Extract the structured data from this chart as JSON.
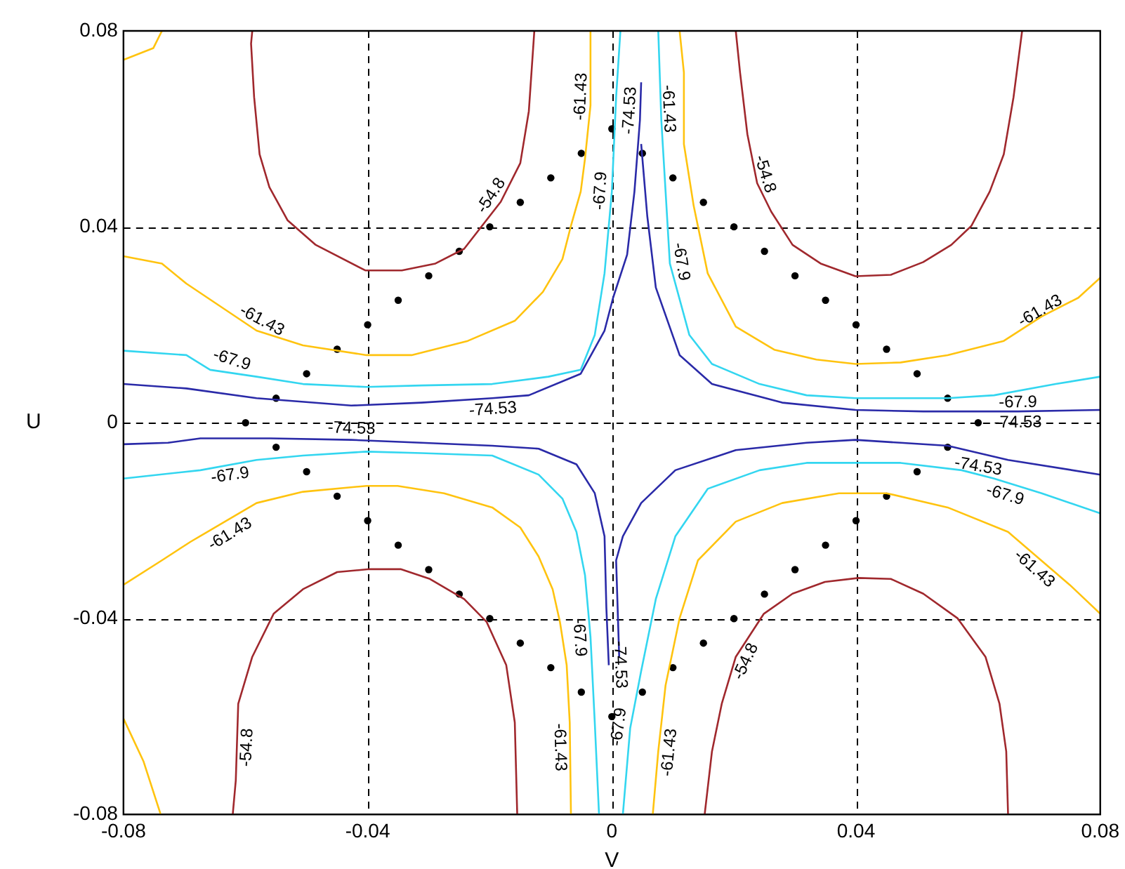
{
  "chart_data": {
    "type": "line",
    "xlabel": "V",
    "ylabel": "U",
    "xlim": [
      -0.08,
      0.08
    ],
    "ylim": [
      -0.08,
      0.08
    ],
    "xticks": [
      -0.08,
      -0.04,
      0,
      0.04,
      0.08
    ],
    "yticks": [
      -0.08,
      -0.04,
      0,
      0.04,
      0.08
    ],
    "grid": true,
    "legend": false,
    "series": [
      {
        "type": "line",
        "color": "#a0282d",
        "x": [
          -0.0589,
          -0.0591,
          -0.0586,
          -0.0577,
          -0.0561,
          -0.0531,
          -0.0485,
          -0.0404,
          -0.0344,
          -0.0289,
          -0.0242,
          -0.0182,
          -0.015,
          -0.0136,
          -0.0127
        ],
        "values": [
          0.08,
          0.0774,
          0.0665,
          0.0548,
          0.0481,
          0.0413,
          0.0363,
          0.0311,
          0.0311,
          0.0325,
          0.0355,
          0.0451,
          0.053,
          0.0636,
          0.08
        ]
      },
      {
        "type": "line",
        "color": "#a0282d",
        "x": [
          0.0203,
          0.021,
          0.0222,
          0.0238,
          0.0261,
          0.0296,
          0.0342,
          0.0399,
          0.0457,
          0.051,
          0.0556,
          0.0589,
          0.0619,
          0.0642,
          0.0658,
          0.0672
        ],
        "values": [
          0.08,
          0.0715,
          0.0589,
          0.0489,
          0.0431,
          0.0363,
          0.0325,
          0.0299,
          0.0302,
          0.0328,
          0.0363,
          0.0402,
          0.0472,
          0.0548,
          0.0665,
          0.08
        ]
      },
      {
        "type": "line",
        "color": "#a0282d",
        "x": [
          -0.0621,
          -0.0616,
          -0.0612,
          -0.0589,
          -0.0554,
          -0.0506,
          -0.045,
          -0.0397,
          -0.0346,
          -0.0298,
          -0.0242,
          -0.0205,
          -0.0173,
          -0.0159,
          -0.0155
        ],
        "values": [
          -0.08,
          -0.073,
          -0.0574,
          -0.0478,
          -0.039,
          -0.034,
          -0.0305,
          -0.0299,
          -0.0299,
          -0.0319,
          -0.036,
          -0.0407,
          -0.0495,
          -0.0612,
          -0.08
        ]
      },
      {
        "type": "line",
        "color": "#a0282d",
        "x": [
          0.0152,
          0.0164,
          0.018,
          0.0203,
          0.0249,
          0.0296,
          0.0349,
          0.0404,
          0.0457,
          0.051,
          0.0566,
          0.0612,
          0.0635,
          0.0646,
          0.0649
        ],
        "values": [
          -0.08,
          -0.0671,
          -0.0574,
          -0.0478,
          -0.039,
          -0.0349,
          -0.0325,
          -0.0317,
          -0.0319,
          -0.0349,
          -0.0399,
          -0.0478,
          -0.0574,
          -0.0671,
          -0.08
        ]
      },
      {
        "type": "line",
        "color": "#ffc30f",
        "x": [
          -0.08,
          -0.0751,
          -0.0737
        ],
        "values": [
          0.0741,
          0.0765,
          0.08
        ]
      },
      {
        "type": "line",
        "color": "#ffc30f",
        "x": [
          -0.08,
          -0.0767,
          -0.0739
        ],
        "values": [
          -0.0604,
          -0.0692,
          -0.08
        ]
      },
      {
        "type": "line",
        "color": "#ffc30f",
        "x": [
          -0.08,
          -0.0737,
          -0.0697,
          -0.0582,
          -0.0506,
          -0.0402,
          -0.0328,
          -0.0236,
          -0.0159,
          -0.0113,
          -0.0081,
          -0.0067,
          -0.0051,
          -0.0044,
          -0.0035,
          -0.0035
        ],
        "values": [
          0.034,
          0.0325,
          0.0284,
          0.0188,
          0.0158,
          0.0138,
          0.0138,
          0.0167,
          0.0208,
          0.0267,
          0.0334,
          0.0402,
          0.0472,
          0.0539,
          0.0648,
          0.08
        ]
      },
      {
        "type": "line",
        "color": "#ffc30f",
        "x": [
          0.0111,
          0.0118,
          0.0118,
          0.0134,
          0.0157,
          0.0203,
          0.0266,
          0.0335,
          0.0399,
          0.0473,
          0.055,
          0.0642,
          0.0704,
          0.0764,
          0.08
        ],
        "values": [
          0.08,
          0.0715,
          0.0569,
          0.0443,
          0.0305,
          0.0196,
          0.0149,
          0.0129,
          0.012,
          0.0123,
          0.0138,
          0.0167,
          0.0217,
          0.0255,
          0.0296
        ]
      },
      {
        "type": "line",
        "color": "#ffc30f",
        "x": [
          -0.08,
          -0.0737,
          -0.069,
          -0.0582,
          -0.0506,
          -0.0402,
          -0.0351,
          -0.0275,
          -0.0196,
          -0.015,
          -0.012,
          -0.0097,
          -0.0085,
          -0.0074,
          -0.0069,
          -0.0067
        ],
        "values": [
          -0.0331,
          -0.0281,
          -0.0243,
          -0.0164,
          -0.0141,
          -0.0129,
          -0.0129,
          -0.0144,
          -0.0173,
          -0.0214,
          -0.0273,
          -0.034,
          -0.0407,
          -0.0495,
          -0.0612,
          -0.08
        ]
      },
      {
        "type": "line",
        "color": "#ffc30f",
        "x": [
          0.0067,
          0.0076,
          0.0088,
          0.0111,
          0.0141,
          0.0203,
          0.0279,
          0.0372,
          0.045,
          0.055,
          0.0649,
          0.075,
          0.08
        ],
        "values": [
          -0.08,
          -0.0671,
          -0.0536,
          -0.0399,
          -0.0281,
          -0.0202,
          -0.0164,
          -0.0144,
          -0.0144,
          -0.0173,
          -0.0223,
          -0.0331,
          -0.039
        ]
      },
      {
        "type": "line",
        "color": "#33d6f0",
        "x": [
          -0.08,
          -0.0697,
          -0.0658,
          -0.0582,
          -0.0506,
          -0.0402,
          -0.0312,
          -0.0196,
          -0.0104,
          -0.0051,
          -0.0028,
          -0.0012,
          0,
          0.0007,
          0.0014
        ],
        "values": [
          0.0147,
          0.0138,
          0.0108,
          0.0094,
          0.0079,
          0.0073,
          0.0076,
          0.0079,
          0.0094,
          0.0108,
          0.0179,
          0.0305,
          0.0472,
          0.0665,
          0.08
        ]
      },
      {
        "type": "line",
        "color": "#33d6f0",
        "x": [
          0.0076,
          0.0081,
          0.0088,
          0.0095,
          0.0127,
          0.0164,
          0.0242,
          0.0319,
          0.0399,
          0.055,
          0.0626,
          0.0727,
          0.08
        ],
        "values": [
          0.08,
          0.0618,
          0.0472,
          0.0325,
          0.0179,
          0.012,
          0.0079,
          0.0056,
          0.005,
          0.005,
          0.0056,
          0.0079,
          0.0094
        ]
      },
      {
        "type": "line",
        "color": "#33d6f0",
        "x": [
          -0.08,
          -0.0674,
          -0.0582,
          -0.0506,
          -0.0402,
          -0.0312,
          -0.0196,
          -0.012,
          -0.0081,
          -0.0058,
          -0.0044,
          -0.0035,
          -0.0028,
          -0.0021
        ],
        "values": [
          -0.0114,
          -0.0097,
          -0.0076,
          -0.0067,
          -0.0059,
          -0.0062,
          -0.0067,
          -0.0106,
          -0.0155,
          -0.0223,
          -0.0311,
          -0.0437,
          -0.0612,
          -0.08
        ]
      },
      {
        "type": "line",
        "color": "#33d6f0",
        "x": [
          0.0018,
          0.003,
          0.0048,
          0.0072,
          0.0104,
          0.0157,
          0.0242,
          0.0319,
          0.0399,
          0.0473,
          0.0573,
          0.0626,
          0.0704,
          0.08
        ],
        "values": [
          -0.08,
          -0.0624,
          -0.0507,
          -0.036,
          -0.0232,
          -0.0135,
          -0.0097,
          -0.0082,
          -0.0082,
          -0.0082,
          -0.0097,
          -0.0114,
          -0.0144,
          -0.0185
        ]
      },
      {
        "type": "line",
        "color": "#2a2aa8",
        "x": [
          -0.08,
          -0.0697,
          -0.0582,
          -0.0427,
          -0.0312,
          -0.0196,
          -0.0136,
          -0.0051,
          -0.0012,
          0.0002,
          0.0025,
          0.0037,
          0.0046,
          0.0048
        ],
        "values": [
          0.0079,
          0.007,
          0.005,
          0.0035,
          0.0041,
          0.005,
          0.0056,
          0.01,
          0.0188,
          0.0255,
          0.0343,
          0.0472,
          0.0618,
          0.0695
        ]
      },
      {
        "type": "line",
        "color": "#2a2aa8",
        "x": [
          0.0048,
          0.0058,
          0.0072,
          0.0111,
          0.0164,
          0.0279,
          0.0399,
          0.051,
          0.0665,
          0.08
        ],
        "values": [
          0.0569,
          0.0422,
          0.0276,
          0.0138,
          0.0079,
          0.0041,
          0.0026,
          0.0023,
          0.0023,
          0.0026
        ]
      },
      {
        "type": "line",
        "color": "#2a2aa8",
        "x": [
          -0.08,
          -0.0727,
          -0.0674,
          -0.0559,
          -0.0427,
          -0.0312,
          -0.0196,
          -0.012,
          -0.0058,
          -0.0028,
          -0.0012,
          -0.0009,
          -0.0005
        ],
        "values": [
          -0.0044,
          -0.0041,
          -0.0032,
          -0.0032,
          -0.0035,
          -0.0041,
          -0.0047,
          -0.0053,
          -0.0085,
          -0.0144,
          -0.0232,
          -0.0378,
          -0.0495
        ]
      },
      {
        "type": "line",
        "color": "#2a2aa8",
        "x": [
          0.0012,
          0.0007,
          0.0018,
          0.0048,
          0.0104,
          0.0203,
          0.0319,
          0.0399,
          0.0473,
          0.055,
          0.0649,
          0.08
        ],
        "values": [
          -0.0478,
          -0.0281,
          -0.0232,
          -0.0164,
          -0.0097,
          -0.0056,
          -0.0041,
          -0.0035,
          -0.0041,
          -0.0047,
          -0.0076,
          -0.0106
        ]
      },
      {
        "type": "scatter",
        "color": "#000000",
        "x": [
          -0.06,
          -0.055,
          -0.05,
          -0.045,
          -0.04,
          -0.035,
          -0.03,
          -0.025,
          -0.02,
          -0.015,
          -0.01,
          -0.005,
          0,
          0.005,
          0.01,
          0.015,
          0.02,
          0.025,
          0.03,
          0.035,
          0.04,
          0.045,
          0.05,
          0.055,
          0.06,
          0.055,
          0.05,
          0.045,
          0.04,
          0.035,
          0.03,
          0.025,
          0.02,
          0.015,
          0.01,
          0.005,
          0,
          -0.005,
          -0.01,
          -0.015,
          -0.02,
          -0.025,
          -0.03,
          -0.035,
          -0.04,
          -0.045,
          -0.05,
          -0.055
        ],
        "values": [
          0,
          0.005,
          0.01,
          0.015,
          0.02,
          0.025,
          0.03,
          0.035,
          0.04,
          0.045,
          0.05,
          0.055,
          0.06,
          0.055,
          0.05,
          0.045,
          0.04,
          0.035,
          0.03,
          0.025,
          0.02,
          0.015,
          0.01,
          0.005,
          0,
          -0.005,
          -0.01,
          -0.015,
          -0.02,
          -0.025,
          -0.03,
          -0.035,
          -0.04,
          -0.045,
          -0.05,
          -0.055,
          -0.06,
          -0.055,
          -0.05,
          -0.045,
          -0.04,
          -0.035,
          -0.03,
          -0.025,
          -0.02,
          -0.015,
          -0.01,
          -0.005
        ]
      }
    ],
    "annotations": [
      {
        "text": "-61.43",
        "x": -0.0582,
        "y": 0.0188
      },
      {
        "text": "-67.9",
        "x": -0.0628,
        "y": 0.0106
      },
      {
        "text": "-74.53",
        "x": -0.0196,
        "y": 0.005
      },
      {
        "text": "-54.8",
        "x": -0.0182,
        "y": 0.0451
      },
      {
        "text": "-61.43",
        "x": -0.0032,
        "y": 0.0665
      },
      {
        "text": "-67.9",
        "x": 0,
        "y": 0.0472
      },
      {
        "text": "-74.53",
        "x": 0.0048,
        "y": 0.0636
      },
      {
        "text": "-67.9",
        "x": 0.0095,
        "y": 0.0325
      },
      {
        "text": "-61.43",
        "x": 0.0111,
        "y": 0.0642
      },
      {
        "text": "-54.8",
        "x": 0.0233,
        "y": 0.0501
      },
      {
        "text": "-61.43",
        "x": 0.0711,
        "y": 0.0208
      },
      {
        "text": "-67.9",
        "x": 0.0665,
        "y": 0.0064
      },
      {
        "text": "-74.53",
        "x": 0.0665,
        "y": 0.0023
      },
      {
        "text": "-74.53",
        "x": -0.0427,
        "y": -0.0035
      },
      {
        "text": "-67.9",
        "x": -0.0628,
        "y": -0.0085
      },
      {
        "text": "-61.43",
        "x": -0.0635,
        "y": -0.0208
      },
      {
        "text": "-54.8",
        "x": -0.0616,
        "y": -0.0662
      },
      {
        "text": "-61.43",
        "x": -0.0067,
        "y": -0.0662
      },
      {
        "text": "-67.9",
        "x": -0.0035,
        "y": -0.0437
      },
      {
        "text": "-74.53",
        "x": -0.0005,
        "y": -0.0495
      },
      {
        "text": "-67.9",
        "x": 0.003,
        "y": -0.0624
      },
      {
        "text": "-61.43",
        "x": 0.0076,
        "y": -0.0671
      },
      {
        "text": "-54.8",
        "x": 0.0203,
        "y": -0.0478
      },
      {
        "text": "-74.53",
        "x": 0.0603,
        "y": -0.0067
      },
      {
        "text": "-67.9",
        "x": 0.0649,
        "y": -0.0126
      },
      {
        "text": "-61.43",
        "x": 0.0704,
        "y": -0.0281
      }
    ]
  }
}
